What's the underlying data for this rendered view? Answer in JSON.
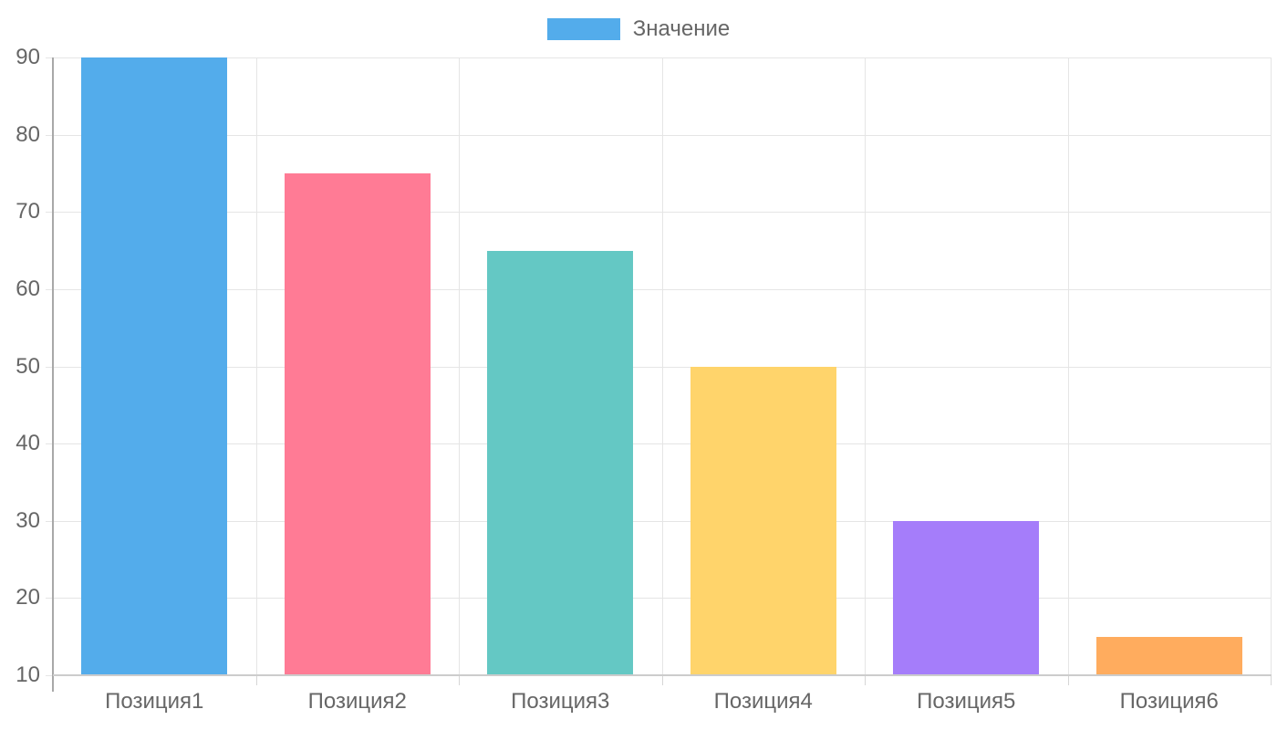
{
  "chart_data": {
    "type": "bar",
    "title": "",
    "categories": [
      "Позиция1",
      "Позиция2",
      "Позиция3",
      "Позиция4",
      "Позиция5",
      "Позиция6"
    ],
    "values": [
      90,
      75,
      65,
      50,
      30,
      15
    ],
    "bar_colors": [
      "#53aceb",
      "#ff7b95",
      "#64c8c4",
      "#ffd46b",
      "#a57dfa",
      "#ffac5e"
    ],
    "legend": {
      "label": "Значение",
      "color": "#53aceb",
      "position": "top"
    },
    "xlabel": "",
    "ylabel": "",
    "ylim": [
      10,
      90
    ],
    "yticks": [
      10,
      20,
      30,
      40,
      50,
      60,
      70,
      80,
      90
    ],
    "grid": true,
    "text_color": "#666666",
    "gridline_color": "#e5e5e5",
    "axis_color_left": "#a8a8a8",
    "axis_color_bottom": "#cccccc"
  }
}
